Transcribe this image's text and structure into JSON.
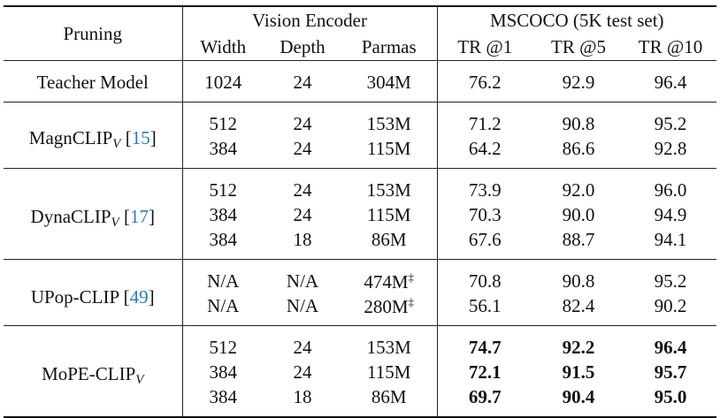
{
  "header": {
    "pruning": "Pruning",
    "vision_encoder": "Vision Encoder",
    "mscoco": "MSCOCO (5K test set)",
    "width": "Width",
    "depth": "Depth",
    "params": "Parmas",
    "tr1": "TR @1",
    "tr5": "TR @5",
    "tr10": "TR @10"
  },
  "groups": [
    {
      "name": "Teacher Model",
      "subscript": "",
      "cite": "",
      "rows": [
        {
          "width": "1024",
          "depth": "24",
          "params": "304M",
          "params_mark": "",
          "tr1": "76.2",
          "tr5": "92.9",
          "tr10": "96.4",
          "bold": false
        }
      ]
    },
    {
      "name": "MagnCLIP",
      "subscript": "V",
      "cite": "15",
      "rows": [
        {
          "width": "512",
          "depth": "24",
          "params": "153M",
          "params_mark": "",
          "tr1": "71.2",
          "tr5": "90.8",
          "tr10": "95.2",
          "bold": false
        },
        {
          "width": "384",
          "depth": "24",
          "params": "115M",
          "params_mark": "",
          "tr1": "64.2",
          "tr5": "86.6",
          "tr10": "92.8",
          "bold": false
        }
      ]
    },
    {
      "name": "DynaCLIP",
      "subscript": "V",
      "cite": "17",
      "rows": [
        {
          "width": "512",
          "depth": "24",
          "params": "153M",
          "params_mark": "",
          "tr1": "73.9",
          "tr5": "92.0",
          "tr10": "96.0",
          "bold": false
        },
        {
          "width": "384",
          "depth": "24",
          "params": "115M",
          "params_mark": "",
          "tr1": "70.3",
          "tr5": "90.0",
          "tr10": "94.9",
          "bold": false
        },
        {
          "width": "384",
          "depth": "18",
          "params": "86M",
          "params_mark": "",
          "tr1": "67.6",
          "tr5": "88.7",
          "tr10": "94.1",
          "bold": false
        }
      ]
    },
    {
      "name": "UPop-CLIP",
      "subscript": "",
      "cite": "49",
      "rows": [
        {
          "width": "N/A",
          "depth": "N/A",
          "params": "474M",
          "params_mark": "‡",
          "tr1": "70.8",
          "tr5": "90.8",
          "tr10": "95.2",
          "bold": false
        },
        {
          "width": "N/A",
          "depth": "N/A",
          "params": "280M",
          "params_mark": "‡",
          "tr1": "56.1",
          "tr5": "82.4",
          "tr10": "90.2",
          "bold": false
        }
      ]
    },
    {
      "name": "MoPE-CLIP",
      "subscript": "V",
      "cite": "",
      "rows": [
        {
          "width": "512",
          "depth": "24",
          "params": "153M",
          "params_mark": "",
          "tr1": "74.7",
          "tr5": "92.2",
          "tr10": "96.4",
          "bold": true
        },
        {
          "width": "384",
          "depth": "24",
          "params": "115M",
          "params_mark": "",
          "tr1": "72.1",
          "tr5": "91.5",
          "tr10": "95.7",
          "bold": true
        },
        {
          "width": "384",
          "depth": "18",
          "params": "86M",
          "params_mark": "",
          "tr1": "69.7",
          "tr5": "90.4",
          "tr10": "95.0",
          "bold": true
        }
      ]
    }
  ]
}
